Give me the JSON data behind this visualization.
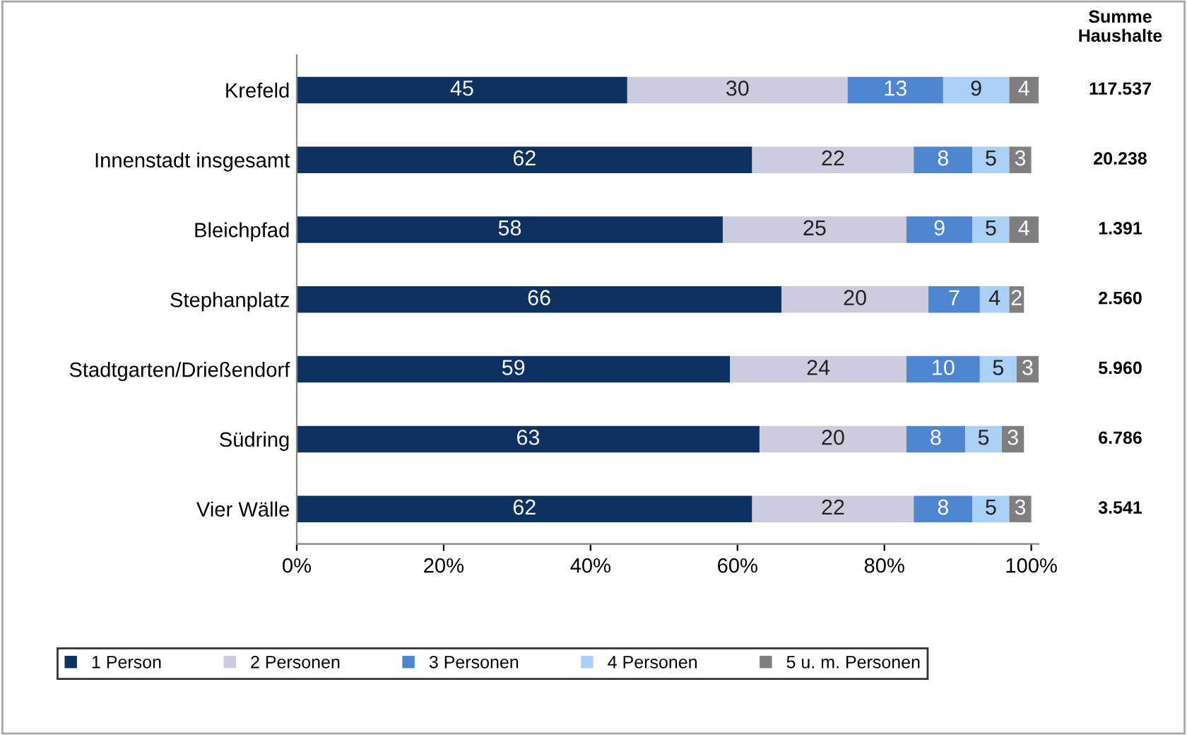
{
  "chart_data": {
    "type": "bar",
    "orientation": "horizontal",
    "stacked": true,
    "categories": [
      "Krefeld",
      "Innenstadt insgesamt",
      "Bleichpfad",
      "Stephanplatz",
      "Stadtgarten/Drießendorf",
      "Südring",
      "Vier Wälle"
    ],
    "series": [
      {
        "name": "1 Person",
        "color": "#0d3161",
        "values": [
          45,
          62,
          58,
          66,
          59,
          63,
          62
        ]
      },
      {
        "name": "2 Personen",
        "color": "#ccccdf",
        "values": [
          30,
          22,
          25,
          20,
          24,
          20,
          22
        ]
      },
      {
        "name": "3 Personen",
        "color": "#4f86d1",
        "values": [
          13,
          8,
          9,
          7,
          10,
          8,
          8
        ]
      },
      {
        "name": "4 Personen",
        "color": "#abd0f5",
        "values": [
          9,
          5,
          5,
          4,
          5,
          5,
          5
        ]
      },
      {
        "name": "5 u. m. Personen",
        "color": "#7f7f7f",
        "values": [
          4,
          3,
          4,
          2,
          3,
          3,
          3
        ]
      }
    ],
    "xlim": [
      0,
      101
    ],
    "xticks": [
      {
        "value": 0,
        "label": "0%"
      },
      {
        "value": 20,
        "label": "20%"
      },
      {
        "value": 40,
        "label": "40%"
      },
      {
        "value": 60,
        "label": "60%"
      },
      {
        "value": 80,
        "label": "80%"
      },
      {
        "value": 100,
        "label": "100%"
      }
    ],
    "data_labels": true,
    "annotations": [
      "Summe Haushalte",
      "117.537",
      "20.238",
      "1.391",
      "2.560",
      "5.960",
      "6.786",
      "3.541"
    ],
    "legend": "bottom",
    "grid": false
  }
}
